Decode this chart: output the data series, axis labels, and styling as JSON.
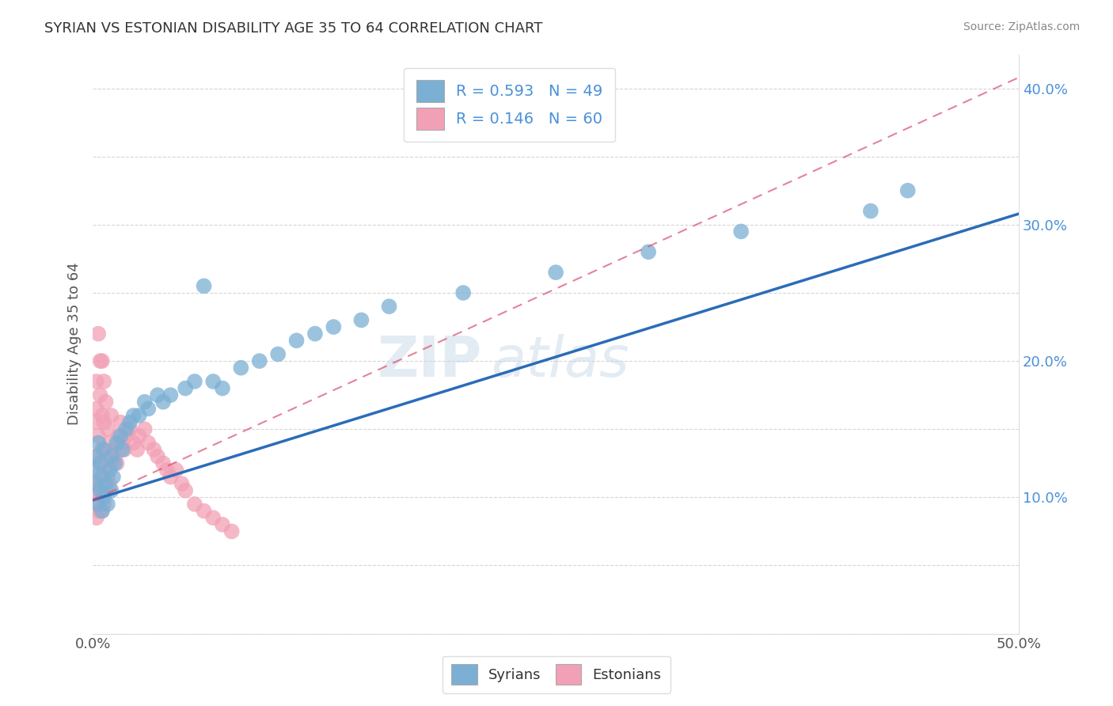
{
  "title": "SYRIAN VS ESTONIAN DISABILITY AGE 35 TO 64 CORRELATION CHART",
  "source": "Source: ZipAtlas.com",
  "ylabel": "Disability Age 35 to 64",
  "xlim": [
    0.0,
    0.5
  ],
  "ylim": [
    0.0,
    0.425
  ],
  "R_syrian": 0.593,
  "N_syrian": 49,
  "R_estonian": 0.146,
  "N_estonian": 60,
  "syrian_color": "#7bafd4",
  "estonian_color": "#f2a0b5",
  "syrian_line_color": "#2b6cb8",
  "estonian_line_color": "#d94f6e",
  "watermark_zip": "ZIP",
  "watermark_atlas": "atlas",
  "legend_label_syrian": "Syrians",
  "legend_label_estonian": "Estonians",
  "syrian_x": [
    0.001,
    0.002,
    0.002,
    0.003,
    0.003,
    0.004,
    0.004,
    0.005,
    0.005,
    0.006,
    0.006,
    0.007,
    0.008,
    0.009,
    0.01,
    0.01,
    0.011,
    0.012,
    0.013,
    0.015,
    0.016,
    0.018,
    0.02,
    0.022,
    0.025,
    0.028,
    0.03,
    0.035,
    0.038,
    0.042,
    0.05,
    0.055,
    0.06,
    0.065,
    0.07,
    0.08,
    0.09,
    0.1,
    0.11,
    0.12,
    0.13,
    0.145,
    0.16,
    0.2,
    0.25,
    0.3,
    0.35,
    0.42,
    0.44
  ],
  "syrian_y": [
    0.12,
    0.11,
    0.13,
    0.095,
    0.14,
    0.105,
    0.125,
    0.09,
    0.115,
    0.1,
    0.135,
    0.11,
    0.095,
    0.12,
    0.105,
    0.13,
    0.115,
    0.125,
    0.14,
    0.145,
    0.135,
    0.15,
    0.155,
    0.16,
    0.16,
    0.17,
    0.165,
    0.175,
    0.17,
    0.175,
    0.18,
    0.185,
    0.255,
    0.185,
    0.18,
    0.195,
    0.2,
    0.205,
    0.215,
    0.22,
    0.225,
    0.23,
    0.24,
    0.25,
    0.265,
    0.28,
    0.295,
    0.31,
    0.325
  ],
  "estonian_x": [
    0.001,
    0.001,
    0.001,
    0.001,
    0.002,
    0.002,
    0.002,
    0.002,
    0.003,
    0.003,
    0.003,
    0.004,
    0.004,
    0.004,
    0.004,
    0.005,
    0.005,
    0.005,
    0.005,
    0.005,
    0.006,
    0.006,
    0.006,
    0.006,
    0.007,
    0.007,
    0.007,
    0.008,
    0.008,
    0.009,
    0.009,
    0.01,
    0.01,
    0.011,
    0.012,
    0.013,
    0.014,
    0.015,
    0.016,
    0.017,
    0.018,
    0.02,
    0.022,
    0.024,
    0.025,
    0.028,
    0.03,
    0.033,
    0.035,
    0.038,
    0.04,
    0.042,
    0.045,
    0.048,
    0.05,
    0.055,
    0.06,
    0.065,
    0.07,
    0.075
  ],
  "estonian_y": [
    0.095,
    0.115,
    0.13,
    0.155,
    0.085,
    0.105,
    0.165,
    0.185,
    0.09,
    0.145,
    0.22,
    0.1,
    0.125,
    0.175,
    0.2,
    0.09,
    0.11,
    0.135,
    0.16,
    0.2,
    0.095,
    0.12,
    0.155,
    0.185,
    0.105,
    0.13,
    0.17,
    0.115,
    0.15,
    0.11,
    0.14,
    0.125,
    0.16,
    0.135,
    0.13,
    0.125,
    0.145,
    0.155,
    0.14,
    0.135,
    0.145,
    0.15,
    0.14,
    0.135,
    0.145,
    0.15,
    0.14,
    0.135,
    0.13,
    0.125,
    0.12,
    0.115,
    0.12,
    0.11,
    0.105,
    0.095,
    0.09,
    0.085,
    0.08,
    0.075
  ],
  "syrian_line_x0": 0.0,
  "syrian_line_y0": 0.098,
  "syrian_line_x1": 0.5,
  "syrian_line_y1": 0.308,
  "estonian_line_x0": 0.0,
  "estonian_line_y0": 0.098,
  "estonian_line_x1": 0.5,
  "estonian_line_y1": 0.408
}
